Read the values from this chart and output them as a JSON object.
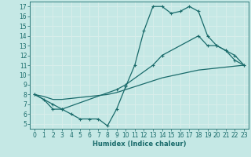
{
  "xlabel": "Humidex (Indice chaleur)",
  "xlim": [
    -0.5,
    23.5
  ],
  "ylim": [
    4.5,
    17.5
  ],
  "xticks": [
    0,
    1,
    2,
    3,
    4,
    5,
    6,
    7,
    8,
    9,
    10,
    11,
    12,
    13,
    14,
    15,
    16,
    17,
    18,
    19,
    20,
    21,
    22,
    23
  ],
  "yticks": [
    5,
    6,
    7,
    8,
    9,
    10,
    11,
    12,
    13,
    14,
    15,
    16,
    17
  ],
  "bg_color": "#c5e8e5",
  "line_color": "#1a6b6b",
  "grid_color": "#d8eeeb",
  "line1_x": [
    0,
    1,
    2,
    3,
    4,
    5,
    6,
    7,
    8,
    9,
    10,
    11,
    12,
    13,
    14,
    15,
    16,
    17,
    18,
    19,
    20,
    21,
    22,
    23
  ],
  "line1_y": [
    8,
    7.5,
    6.5,
    6.5,
    6,
    5.5,
    5.5,
    5.5,
    4.8,
    6.5,
    8.8,
    11,
    14.5,
    17,
    17,
    16.3,
    16.5,
    17,
    16.5,
    14,
    13,
    12.5,
    11.5,
    11
  ],
  "line2_x": [
    0,
    2,
    3,
    9,
    10,
    13,
    14,
    18,
    19,
    20,
    21,
    22,
    23
  ],
  "line2_y": [
    8,
    7,
    6.5,
    8.5,
    9,
    11,
    12,
    14,
    13,
    13,
    12.5,
    12,
    11
  ],
  "line3_x": [
    0,
    1,
    2,
    3,
    4,
    5,
    6,
    7,
    8,
    9,
    10,
    11,
    12,
    13,
    14,
    15,
    16,
    17,
    18,
    19,
    20,
    21,
    22,
    23
  ],
  "line3_y": [
    8,
    7.8,
    7.5,
    7.5,
    7.6,
    7.7,
    7.8,
    7.9,
    8.0,
    8.2,
    8.5,
    8.8,
    9.1,
    9.4,
    9.7,
    9.9,
    10.1,
    10.3,
    10.5,
    10.6,
    10.7,
    10.8,
    10.9,
    11.0
  ]
}
